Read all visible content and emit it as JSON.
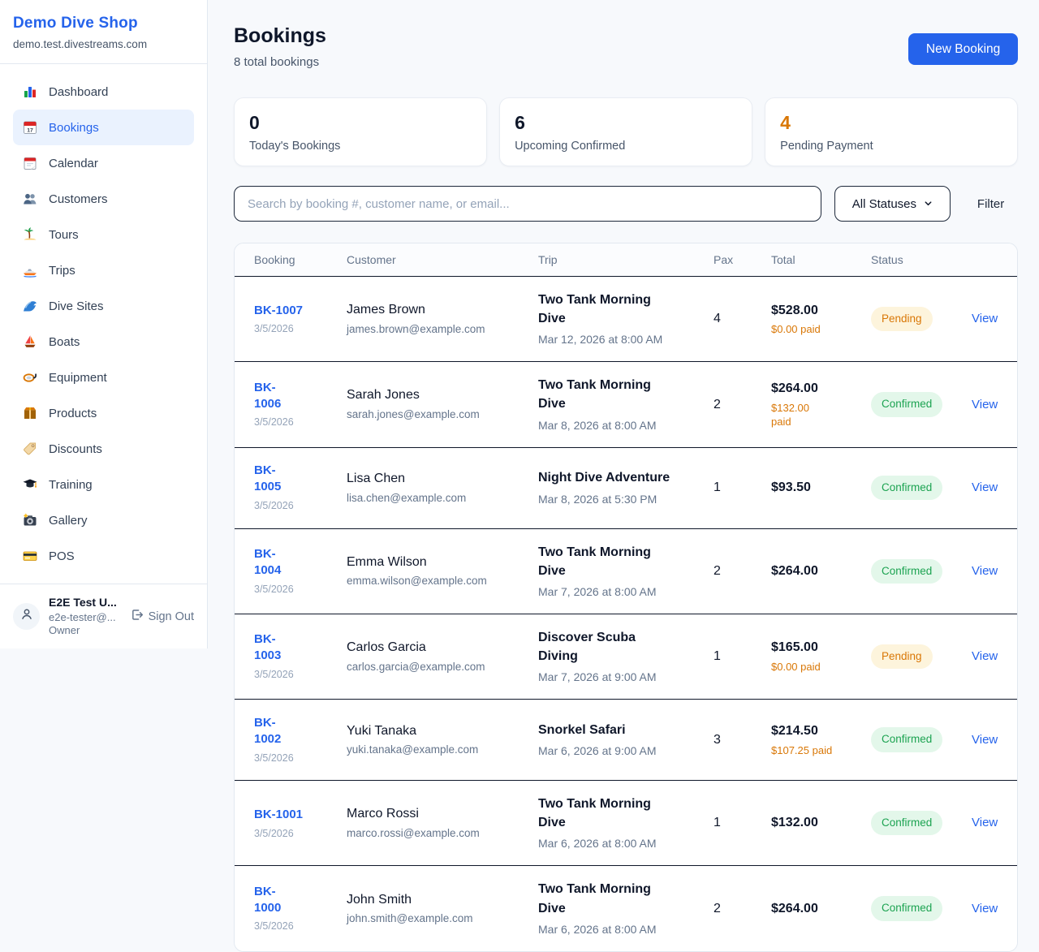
{
  "sidebar": {
    "shop_name": "Demo Dive Shop",
    "shop_domain": "demo.test.divestreams.com",
    "items": [
      {
        "label": "Dashboard",
        "icon": "dashboard",
        "active": false
      },
      {
        "label": "Bookings",
        "icon": "bookings",
        "active": true
      },
      {
        "label": "Calendar",
        "icon": "calendar",
        "active": false
      },
      {
        "label": "Customers",
        "icon": "customers",
        "active": false
      },
      {
        "label": "Tours",
        "icon": "tours",
        "active": false
      },
      {
        "label": "Trips",
        "icon": "trips",
        "active": false
      },
      {
        "label": "Dive Sites",
        "icon": "dive-sites",
        "active": false
      },
      {
        "label": "Boats",
        "icon": "boats",
        "active": false
      },
      {
        "label": "Equipment",
        "icon": "equipment",
        "active": false
      },
      {
        "label": "Products",
        "icon": "products",
        "active": false
      },
      {
        "label": "Discounts",
        "icon": "discounts",
        "active": false
      },
      {
        "label": "Training",
        "icon": "training",
        "active": false
      },
      {
        "label": "Gallery",
        "icon": "gallery",
        "active": false
      },
      {
        "label": "POS",
        "icon": "pos",
        "active": false
      }
    ],
    "user": {
      "name": "E2E Test U...",
      "email": "e2e-tester@...",
      "role": "Owner",
      "sign_out_label": "Sign Out"
    }
  },
  "header": {
    "title": "Bookings",
    "subtitle": "8 total bookings",
    "new_booking_label": "New Booking"
  },
  "stats": [
    {
      "value": "0",
      "label": "Today's Bookings",
      "color": "dark"
    },
    {
      "value": "6",
      "label": "Upcoming Confirmed",
      "color": "dark"
    },
    {
      "value": "4",
      "label": "Pending Payment",
      "color": "orange"
    }
  ],
  "filters": {
    "search_placeholder": "Search by booking #, customer name, or email...",
    "status_selected": "All Statuses",
    "filter_label": "Filter"
  },
  "table": {
    "columns": [
      "Booking",
      "Customer",
      "Trip",
      "Pax",
      "Total",
      "Status"
    ],
    "rows": [
      {
        "id": "BK-1007",
        "date": "3/5/2026",
        "name": "James Brown",
        "email": "james.brown@example.com",
        "trip": "Two Tank Morning\nDive",
        "trip_time": "Mar 12, 2026 at 8:00 AM",
        "pax": "4",
        "total": "$528.00",
        "paid": "$0.00 paid",
        "status": "Pending",
        "action": "View"
      },
      {
        "id": "BK-\n1006",
        "date": "3/5/2026",
        "name": "Sarah Jones",
        "email": "sarah.jones@example.com",
        "trip": "Two Tank Morning\nDive",
        "trip_time": "Mar 8, 2026 at 8:00 AM",
        "pax": "2",
        "total": "$264.00",
        "paid": "$132.00\npaid",
        "status": "Confirmed",
        "action": "View"
      },
      {
        "id": "BK-\n1005",
        "date": "3/5/2026",
        "name": "Lisa Chen",
        "email": "lisa.chen@example.com",
        "trip": "Night Dive Adventure",
        "trip_time": "Mar 8, 2026 at 5:30 PM",
        "pax": "1",
        "total": "$93.50",
        "paid": null,
        "status": "Confirmed",
        "action": "View"
      },
      {
        "id": "BK-\n1004",
        "date": "3/5/2026",
        "name": "Emma Wilson",
        "email": "emma.wilson@example.com",
        "trip": "Two Tank Morning\nDive",
        "trip_time": "Mar 7, 2026 at 8:00 AM",
        "pax": "2",
        "total": "$264.00",
        "paid": null,
        "status": "Confirmed",
        "action": "View"
      },
      {
        "id": "BK-\n1003",
        "date": "3/5/2026",
        "name": "Carlos Garcia",
        "email": "carlos.garcia@example.com",
        "trip": "Discover Scuba\nDiving",
        "trip_time": "Mar 7, 2026 at 9:00 AM",
        "pax": "1",
        "total": "$165.00",
        "paid": "$0.00 paid",
        "status": "Pending",
        "action": "View"
      },
      {
        "id": "BK-\n1002",
        "date": "3/5/2026",
        "name": "Yuki Tanaka",
        "email": "yuki.tanaka@example.com",
        "trip": "Snorkel Safari",
        "trip_time": "Mar 6, 2026 at 9:00 AM",
        "pax": "3",
        "total": "$214.50",
        "paid": "$107.25 paid",
        "status": "Confirmed",
        "action": "View"
      },
      {
        "id": "BK-1001",
        "date": "3/5/2026",
        "name": "Marco Rossi",
        "email": "marco.rossi@example.com",
        "trip": "Two Tank Morning\nDive",
        "trip_time": "Mar 6, 2026 at 8:00 AM",
        "pax": "1",
        "total": "$132.00",
        "paid": null,
        "status": "Confirmed",
        "action": "View"
      },
      {
        "id": "BK-\n1000",
        "date": "3/5/2026",
        "name": "John Smith",
        "email": "john.smith@example.com",
        "trip": "Two Tank Morning\nDive",
        "trip_time": "Mar 6, 2026 at 8:00 AM",
        "pax": "2",
        "total": "$264.00",
        "paid": null,
        "status": "Confirmed",
        "action": "View"
      }
    ]
  },
  "colors": {
    "accent_blue": "#2563eb",
    "pending_orange": "#d97706",
    "confirmed_green": "#1ca351",
    "pending_badge_bg": "#fdf4dc",
    "confirmed_badge_bg": "#e3f7ea",
    "page_bg": "#f7f9fc",
    "row_divider": "#0f172a"
  }
}
